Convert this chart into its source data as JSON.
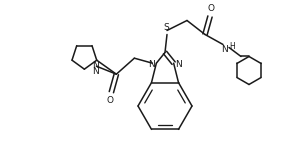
{
  "bg_color": "#ffffff",
  "line_color": "#1a1a1a",
  "line_width": 1.1,
  "figsize": [
    2.85,
    1.51
  ],
  "dpi": 100,
  "xlim": [
    0,
    285
  ],
  "ylim": [
    0,
    151
  ]
}
